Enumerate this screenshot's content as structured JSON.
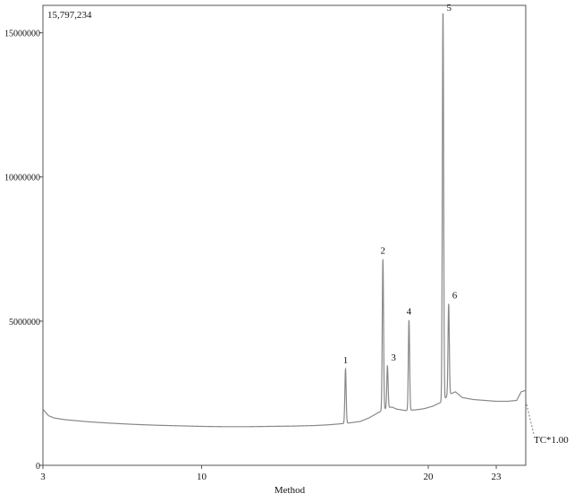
{
  "chart_data": {
    "type": "line",
    "title": "",
    "max_intensity_label": "15,797,234",
    "xlabel": "Method",
    "ylabel": "",
    "trace_label": "TC*1.00",
    "xlim": [
      3,
      24.3
    ],
    "ylim": [
      0,
      15950000
    ],
    "x_ticks": [
      {
        "value": 3,
        "label": "3"
      },
      {
        "value": 10,
        "label": "10"
      },
      {
        "value": 20,
        "label": "20"
      },
      {
        "value": 23,
        "label": "23"
      }
    ],
    "y_ticks": [
      {
        "value": 0,
        "label": "0"
      },
      {
        "value": 5000000,
        "label": "5000000"
      },
      {
        "value": 10000000,
        "label": "10000000"
      },
      {
        "value": 15000000,
        "label": "15000000"
      }
    ],
    "grid": false,
    "line_color": "#888888",
    "baseline": {
      "x": [
        3.0,
        3.1,
        3.25,
        3.5,
        4,
        5,
        6,
        7,
        8,
        9,
        10,
        11,
        12,
        13,
        14,
        15,
        15.5,
        16,
        16.4,
        17,
        17.4,
        17.8,
        18.2,
        18.4,
        18.6,
        19,
        19.4,
        19.8,
        20.2,
        20.6,
        20.9,
        21.2,
        21.5,
        22,
        22.5,
        23,
        23.5,
        23.9,
        24.1,
        24.3
      ],
      "y": [
        1950000,
        1850000,
        1720000,
        1640000,
        1580000,
        1510000,
        1460000,
        1420000,
        1390000,
        1370000,
        1350000,
        1340000,
        1340000,
        1350000,
        1360000,
        1380000,
        1400000,
        1430000,
        1460000,
        1520000,
        1650000,
        1830000,
        2000000,
        2020000,
        1950000,
        1900000,
        1920000,
        1960000,
        2050000,
        2200000,
        2450000,
        2550000,
        2350000,
        2280000,
        2250000,
        2220000,
        2220000,
        2250000,
        2550000,
        2600000
      ]
    },
    "peaks": [
      {
        "label": "1",
        "x": 16.35,
        "y": 3350000
      },
      {
        "label": "2",
        "x": 18.0,
        "y": 7150000
      },
      {
        "label": "3",
        "x": 18.2,
        "y": 3450000
      },
      {
        "label": "4",
        "x": 19.15,
        "y": 5050000
      },
      {
        "label": "5",
        "x": 20.65,
        "y": 15797234
      },
      {
        "label": "6",
        "x": 20.9,
        "y": 5600000
      }
    ]
  }
}
